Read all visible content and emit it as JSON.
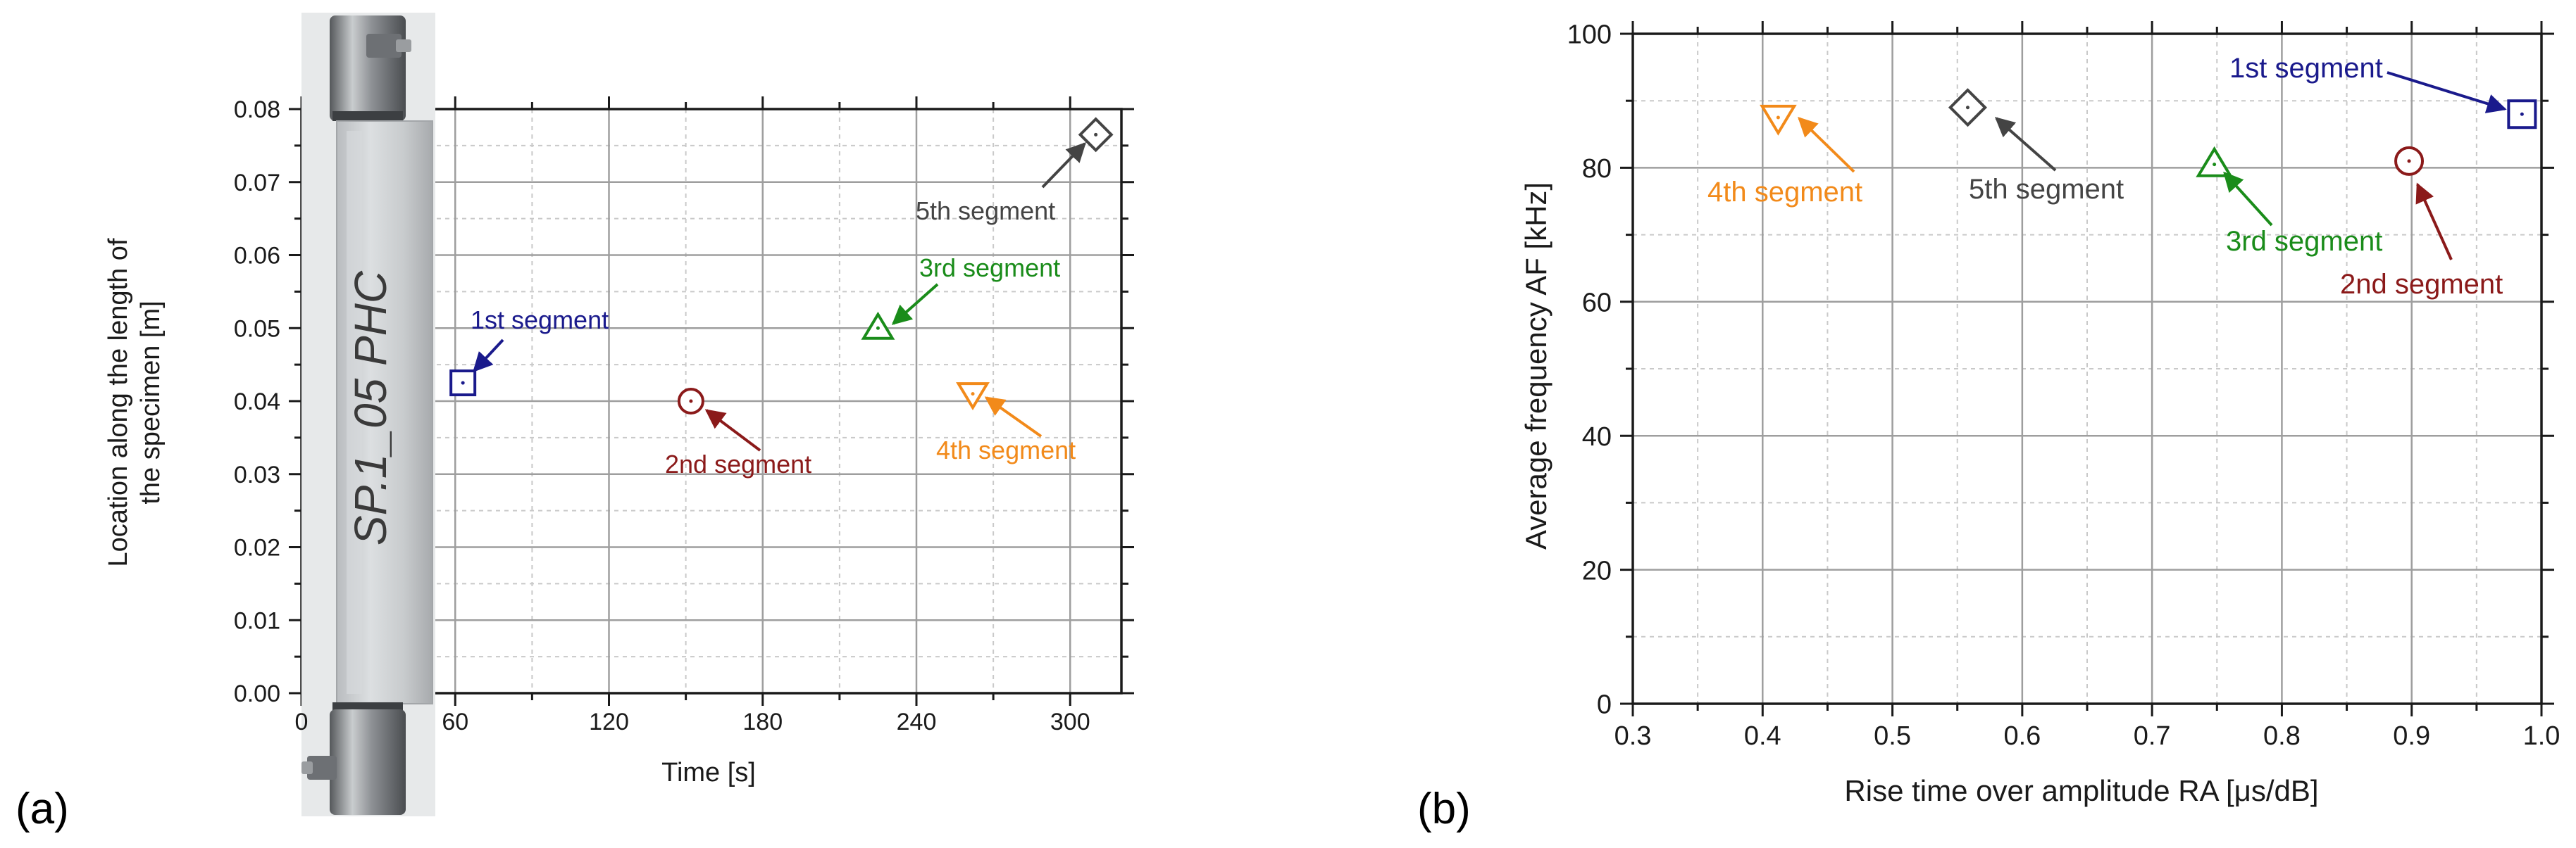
{
  "chart_data": [
    {
      "panel": "(a)",
      "type": "scatter",
      "xlabel": "Time [s]",
      "ylabel_lines": [
        "Location along the length of",
        "the specimen [m]"
      ],
      "xlim": [
        0,
        320
      ],
      "ylim": [
        0,
        0.08
      ],
      "xticks": [
        0,
        60,
        120,
        180,
        240,
        300
      ],
      "xtick_labels": [
        "0",
        "60",
        "120",
        "180",
        "240",
        "300"
      ],
      "yticks": [
        0,
        0.01,
        0.02,
        0.03,
        0.04,
        0.05,
        0.06,
        0.07,
        0.08
      ],
      "ytick_labels": [
        "0.00",
        "0.01",
        "0.02",
        "0.03",
        "0.04",
        "0.05",
        "0.06",
        "0.07",
        "0.08"
      ],
      "grid": true,
      "specimen_photo_label": "SP.1_05 PHC",
      "series": [
        {
          "name": "1st segment",
          "marker": "square",
          "color": "#1a1a8c",
          "x": 63,
          "y": 0.0425,
          "label": "1st segment"
        },
        {
          "name": "2nd segment",
          "marker": "circle",
          "color": "#8b1a1a",
          "x": 152,
          "y": 0.04,
          "label": "2nd segment"
        },
        {
          "name": "3rd segment",
          "marker": "triangle-up",
          "color": "#1a8c1a",
          "x": 225,
          "y": 0.05,
          "label": "3rd segment"
        },
        {
          "name": "4th segment",
          "marker": "triangle-down",
          "color": "#f28a1a",
          "x": 262,
          "y": 0.041,
          "label": "4th segment"
        },
        {
          "name": "5th segment",
          "marker": "diamond",
          "color": "#444444",
          "x": 310,
          "y": 0.0765,
          "label": "5th segment"
        }
      ]
    },
    {
      "panel": "(b)",
      "type": "scatter",
      "xlabel": "Rise time over amplitude RA [μs/dB]",
      "ylabel": "Average frequency AF [kHz]",
      "xlim": [
        0.3,
        1.0
      ],
      "ylim": [
        0,
        100
      ],
      "xticks": [
        0.3,
        0.4,
        0.5,
        0.6,
        0.7,
        0.8,
        0.9,
        1.0
      ],
      "xtick_labels": [
        "0.3",
        "0.4",
        "0.5",
        "0.6",
        "0.7",
        "0.8",
        "0.9",
        "1.0"
      ],
      "yticks": [
        0,
        20,
        40,
        60,
        80,
        100
      ],
      "ytick_labels": [
        "0",
        "20",
        "40",
        "60",
        "80",
        "100"
      ],
      "grid": true,
      "series": [
        {
          "name": "1st segment",
          "marker": "square",
          "color": "#1a1a8c",
          "x": 0.985,
          "y": 88,
          "label": "1st segment"
        },
        {
          "name": "2nd segment",
          "marker": "circle",
          "color": "#8b1a1a",
          "x": 0.898,
          "y": 81,
          "label": "2nd segment"
        },
        {
          "name": "3rd segment",
          "marker": "triangle-up",
          "color": "#1a8c1a",
          "x": 0.748,
          "y": 80.5,
          "label": "3rd segment"
        },
        {
          "name": "4th segment",
          "marker": "triangle-down",
          "color": "#f28a1a",
          "x": 0.412,
          "y": 87.5,
          "label": "4th segment"
        },
        {
          "name": "5th segment",
          "marker": "diamond",
          "color": "#444444",
          "x": 0.558,
          "y": 89,
          "label": "5th segment"
        }
      ]
    }
  ]
}
